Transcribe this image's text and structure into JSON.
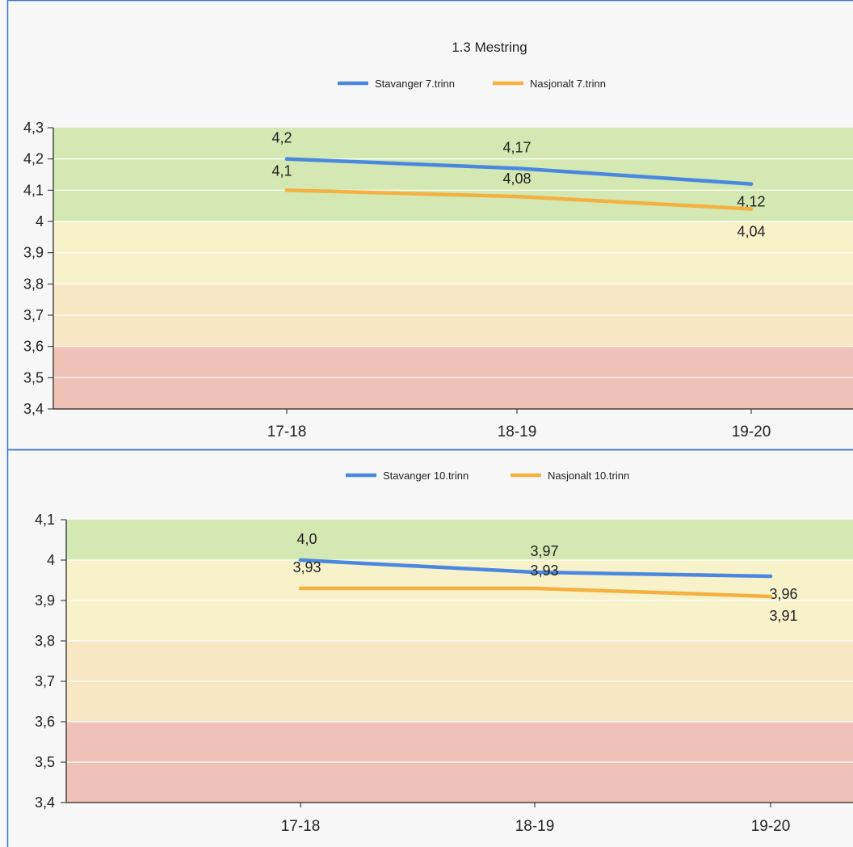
{
  "title": "1.3 Mestring",
  "colors": {
    "stavanger": "#4a88e0",
    "nasjonalt": "#f4b040",
    "band_green": "#d3e8b2",
    "band_yellow": "#f8f2cb",
    "band_orange": "#f8e7c4",
    "band_red": "#f0c2b7",
    "frame": "#3c73c8",
    "background": "#f7f7f7",
    "gridline": "#ffffff",
    "axis": "#222222"
  },
  "chart_data": [
    {
      "type": "line",
      "title": "1.3 Mestring",
      "categories": [
        "17-18",
        "18-19",
        "19-20"
      ],
      "series": [
        {
          "name": "Stavanger 7.trinn",
          "values": [
            4.2,
            4.17,
            4.12
          ],
          "labels": [
            "4,2",
            "4,17",
            "4,12"
          ]
        },
        {
          "name": "Nasjonalt 7.trinn",
          "values": [
            4.1,
            4.08,
            4.04
          ],
          "labels": [
            "4,1",
            "4,08",
            "4,04"
          ]
        }
      ],
      "ylim": [
        3.4,
        4.3
      ],
      "yticks": [
        "4,3",
        "4,2",
        "4,1",
        "4",
        "3,9",
        "3,8",
        "3,7",
        "3,6",
        "3,5",
        "3,4"
      ],
      "ytick_values": [
        4.3,
        4.2,
        4.1,
        4.0,
        3.9,
        3.8,
        3.7,
        3.6,
        3.5,
        3.4
      ],
      "bands": [
        {
          "from": 4.0,
          "to": 4.3,
          "color": "green"
        },
        {
          "from": 3.8,
          "to": 4.0,
          "color": "yellow"
        },
        {
          "from": 3.6,
          "to": 3.8,
          "color": "orange"
        },
        {
          "from": 3.4,
          "to": 3.6,
          "color": "red"
        }
      ],
      "legend": "top-center",
      "grid": true
    },
    {
      "type": "line",
      "title": "",
      "categories": [
        "17-18",
        "18-19",
        "19-20"
      ],
      "series": [
        {
          "name": "Stavanger 10.trinn",
          "values": [
            4.0,
            3.97,
            3.96
          ],
          "labels": [
            "4,0",
            "3,97",
            "3,96"
          ]
        },
        {
          "name": "Nasjonalt 10.trinn",
          "values": [
            3.93,
            3.93,
            3.91
          ],
          "labels": [
            "3,93",
            "3,93",
            "3,91"
          ]
        }
      ],
      "ylim": [
        3.4,
        4.1
      ],
      "yticks": [
        "4,1",
        "4",
        "3,9",
        "3,8",
        "3,7",
        "3,6",
        "3,5",
        "3,4"
      ],
      "ytick_values": [
        4.1,
        4.0,
        3.9,
        3.8,
        3.7,
        3.6,
        3.5,
        3.4
      ],
      "bands": [
        {
          "from": 4.0,
          "to": 4.1,
          "color": "green"
        },
        {
          "from": 3.8,
          "to": 4.0,
          "color": "yellow"
        },
        {
          "from": 3.6,
          "to": 3.8,
          "color": "orange"
        },
        {
          "from": 3.4,
          "to": 3.6,
          "color": "red"
        }
      ],
      "legend": "top-center",
      "grid": true
    }
  ]
}
